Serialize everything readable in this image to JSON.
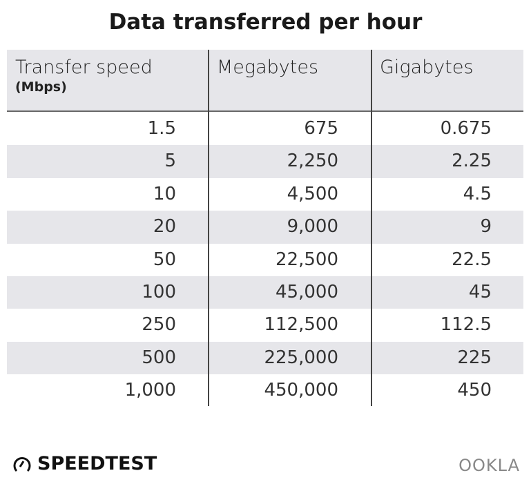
{
  "chart_data": {
    "type": "table",
    "title": "Data transferred per hour",
    "columns": [
      {
        "label": "Transfer speed",
        "sublabel": "(Mbps)"
      },
      {
        "label": "Megabytes"
      },
      {
        "label": "Gigabytes"
      }
    ],
    "rows": [
      [
        "1.5",
        "675",
        "0.675"
      ],
      [
        "5",
        "2,250",
        "2.25"
      ],
      [
        "10",
        "4,500",
        "4.5"
      ],
      [
        "20",
        "9,000",
        "9"
      ],
      [
        "50",
        "22,500",
        "22.5"
      ],
      [
        "100",
        "45,000",
        "45"
      ],
      [
        "250",
        "112,500",
        "112.5"
      ],
      [
        "500",
        "225,000",
        "225"
      ],
      [
        "1,000",
        "450,000",
        "450"
      ]
    ]
  },
  "branding": {
    "speedtest": "SPEEDTEST",
    "ookla": "OOKLA"
  },
  "colors": {
    "header_bg": "#e6e6ea",
    "stripe": "#e6e6ea"
  }
}
